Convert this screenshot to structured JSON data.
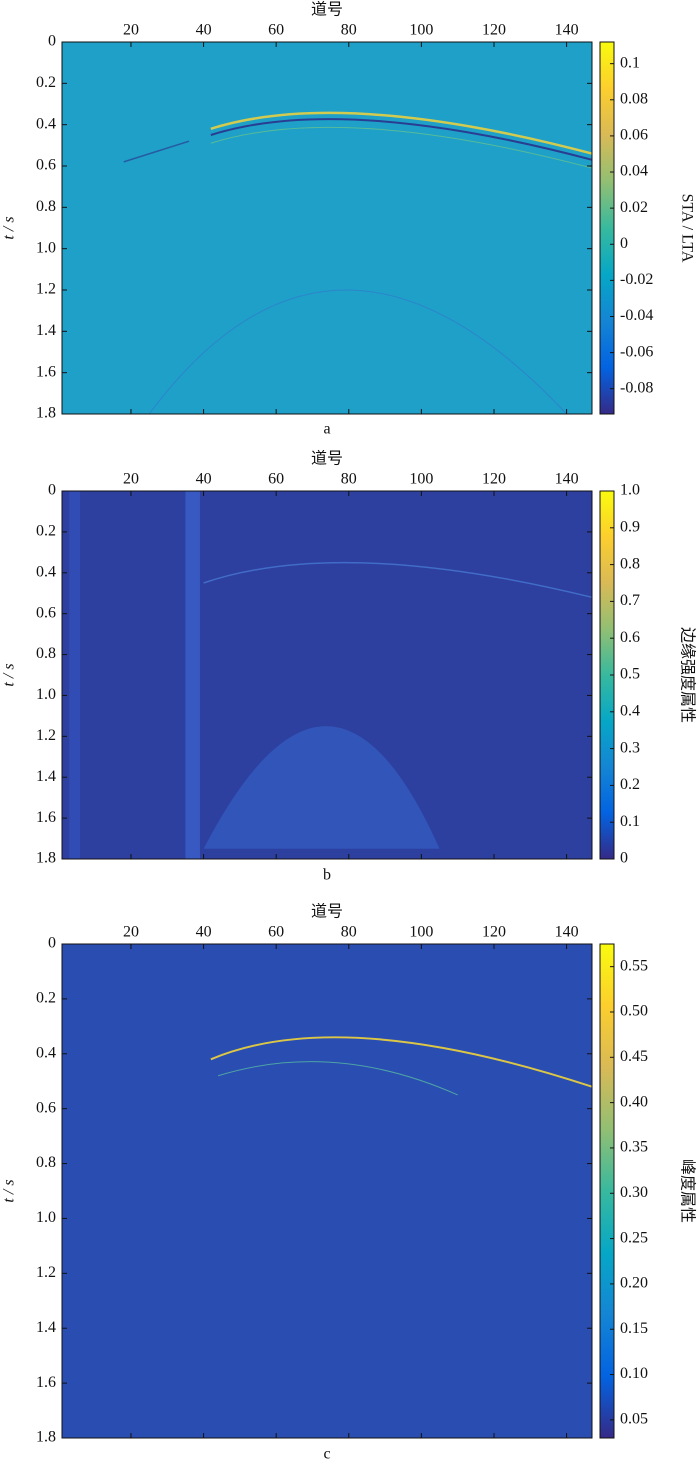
{
  "chart_data": [
    {
      "type": "heatmap",
      "x_label": "道号",
      "y_label": "t / s",
      "colorbar_label": "STA / LTA",
      "caption": "a",
      "colormap": "parula",
      "xlim": [
        1,
        147
      ],
      "xticks": [
        20,
        40,
        60,
        80,
        100,
        120,
        140
      ],
      "ylim": [
        0,
        1.8
      ],
      "yticks": [
        0,
        0.2,
        0.4,
        0.6,
        0.8,
        {
          "value": 1.0,
          "label": "1.0"
        },
        1.2,
        1.4,
        1.6,
        1.8
      ],
      "clim": [
        -0.094,
        0.112
      ],
      "cticks": [
        -0.08,
        -0.06,
        -0.04,
        -0.02,
        0,
        0.02,
        0.04,
        0.06,
        0.08,
        0.1
      ]
    },
    {
      "type": "heatmap",
      "x_label": "道号",
      "y_label": "t / s",
      "colorbar_label": "边缘强度属性",
      "caption": "b",
      "colormap": "parula",
      "xlim": [
        1,
        147
      ],
      "xticks": [
        20,
        40,
        60,
        80,
        100,
        120,
        140
      ],
      "ylim": [
        0,
        1.8
      ],
      "yticks": [
        0,
        0.2,
        0.4,
        0.6,
        0.8,
        {
          "value": 1.0,
          "label": "1.0"
        },
        1.2,
        1.4,
        1.6,
        1.8
      ],
      "clim": [
        0,
        1
      ],
      "cticks": [
        0,
        0.1,
        0.2,
        0.3,
        0.4,
        0.5,
        0.6,
        0.7,
        0.8,
        0.9,
        {
          "value": 1.0,
          "label": "1.0"
        }
      ]
    },
    {
      "type": "heatmap",
      "x_label": "道号",
      "y_label": "t / s",
      "colorbar_label": "峰度属性",
      "caption": "c",
      "colormap": "parula",
      "xlim": [
        1,
        147
      ],
      "xticks": [
        20,
        40,
        60,
        80,
        100,
        120,
        140
      ],
      "ylim": [
        0,
        1.8
      ],
      "yticks": [
        0,
        0.2,
        0.4,
        0.6,
        0.8,
        {
          "value": 1.0,
          "label": "1.0"
        },
        1.2,
        1.4,
        1.6,
        1.8
      ],
      "clim": [
        0.03,
        0.575
      ],
      "cticks": [
        0.05,
        {
          "value": 0.1,
          "label": "0.10"
        },
        0.15,
        {
          "value": 0.2,
          "label": "0.20"
        },
        0.25,
        {
          "value": 0.3,
          "label": "0.30"
        },
        0.35,
        {
          "value": 0.4,
          "label": "0.40"
        },
        0.45,
        {
          "value": 0.5,
          "label": "0.50"
        },
        0.55
      ]
    }
  ]
}
